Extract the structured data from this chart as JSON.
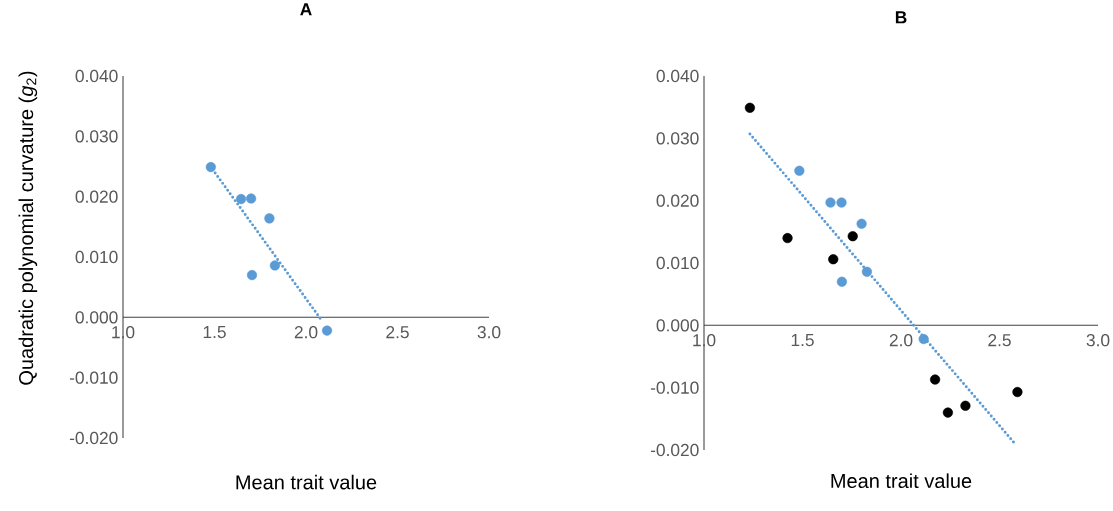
{
  "chart_data": [
    {
      "type": "scatter",
      "title": "A",
      "xlabel": "Mean trait value",
      "ylabel": "Quadratic polynomial curvature (*g*$_{2}$)",
      "xlim": [
        1.0,
        3.0
      ],
      "ylim": [
        -0.02,
        0.04
      ],
      "xticks": [
        {
          "value": 1.0,
          "label": "1.0"
        },
        {
          "value": 1.5,
          "label": "1.5"
        },
        {
          "value": 2.0,
          "label": "2.0"
        },
        {
          "value": 2.5,
          "label": "2.5"
        },
        {
          "value": 3.0,
          "label": "3.0"
        }
      ],
      "yticks": [
        {
          "value": -0.02,
          "label": "-0.020"
        },
        {
          "value": -0.01,
          "label": "-0.010"
        },
        {
          "value": 0.0,
          "label": "0.000"
        },
        {
          "value": 0.01,
          "label": "0.010"
        },
        {
          "value": 0.02,
          "label": "0.020"
        },
        {
          "value": 0.03,
          "label": "0.030"
        },
        {
          "value": 0.04,
          "label": "0.040"
        }
      ],
      "grid": false,
      "series": [
        {
          "marker": "circle",
          "color": "#5b9bd5",
          "x": [
            1.48,
            1.645,
            1.7,
            1.8,
            1.705,
            1.83,
            2.115
          ],
          "values": [
            0.0249,
            0.0196,
            0.0197,
            0.0164,
            0.007,
            0.0086,
            -0.0022
          ]
        },
        {
          "type": "line",
          "line_style": "dotted",
          "marker": "none",
          "color": "#5b9bd5",
          "x": [
            1.49,
            2.09
          ],
          "values": [
            0.0245,
            -0.0007
          ]
        }
      ]
    },
    {
      "type": "scatter",
      "title": "B",
      "xlabel": "Mean trait value",
      "xlim": [
        1.0,
        3.0
      ],
      "ylim": [
        -0.02,
        0.04
      ],
      "xticks": [
        {
          "value": 1.0,
          "label": "1.0"
        },
        {
          "value": 1.5,
          "label": "1.5"
        },
        {
          "value": 2.0,
          "label": "2.0"
        },
        {
          "value": 2.5,
          "label": "2.5"
        },
        {
          "value": 3.0,
          "label": "3.0"
        }
      ],
      "yticks": [
        {
          "value": -0.02,
          "label": "-0.020"
        },
        {
          "value": -0.01,
          "label": "-0.010"
        },
        {
          "value": 0.0,
          "label": "0.000"
        },
        {
          "value": 0.01,
          "label": "0.010"
        },
        {
          "value": 0.02,
          "label": "0.020"
        },
        {
          "value": 0.03,
          "label": "0.030"
        },
        {
          "value": 0.04,
          "label": "0.040"
        }
      ],
      "grid": false,
      "series": [
        {
          "marker": "circle",
          "color": "#000000",
          "x": [
            1.233,
            1.424,
            1.656,
            1.755,
            2.173,
            2.238,
            2.327,
            2.591
          ],
          "values": [
            0.0349,
            0.014,
            0.0106,
            0.0143,
            -0.0087,
            -0.014,
            -0.0129,
            -0.0107
          ]
        },
        {
          "marker": "circle",
          "color": "#5b9bd5",
          "x": [
            1.484,
            1.642,
            1.698,
            1.8,
            1.7,
            1.827,
            2.115
          ],
          "values": [
            0.0248,
            0.0197,
            0.0197,
            0.0163,
            0.007,
            0.0086,
            -0.0022
          ]
        },
        {
          "type": "line",
          "line_style": "dotted",
          "marker": "none",
          "color": "#5b9bd5",
          "x": [
            1.233,
            2.576
          ],
          "values": [
            0.0307,
            -0.0189
          ]
        }
      ]
    }
  ]
}
